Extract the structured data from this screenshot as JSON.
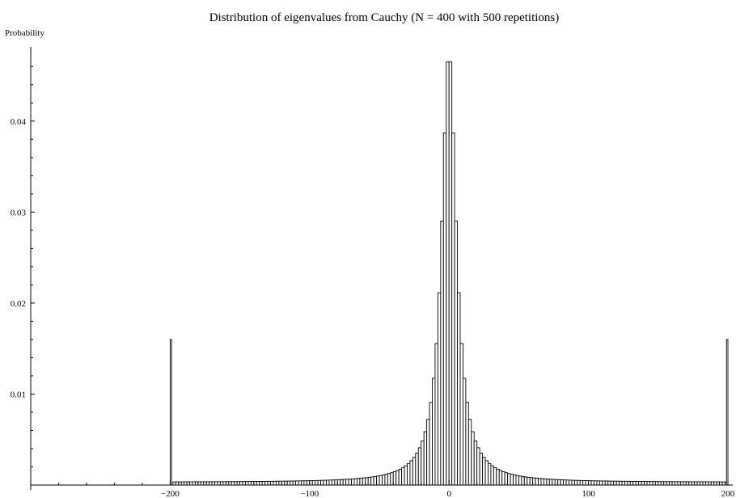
{
  "chart_data": {
    "type": "bar",
    "title": "Distribution of eigenvalues from Cauchy (N = 400 with 500 repetitions)",
    "xlabel": "",
    "ylabel": "Probability",
    "xlim": [
      -300,
      200
    ],
    "ylim": [
      0,
      0.0478
    ],
    "grid": false,
    "legend": "none",
    "bar_width": 2,
    "bar_fill": "#ffffff",
    "bar_stroke": "#000000",
    "x_ticks": [
      -200,
      -100,
      0,
      100,
      200
    ],
    "x_tick_labels": [
      "−200",
      "−100",
      "0",
      "100",
      "200"
    ],
    "y_ticks": [
      0.01,
      0.02,
      0.03,
      0.04
    ],
    "y_tick_labels": [
      "0.01",
      "0.02",
      "0.03",
      "0.04"
    ],
    "outlier_bars": [
      {
        "x": -200,
        "value": 0.016
      },
      {
        "x": 200,
        "value": 0.016
      }
    ],
    "center_peak": 0.0474,
    "half_width": 6.2,
    "floor": 0.0003
  }
}
